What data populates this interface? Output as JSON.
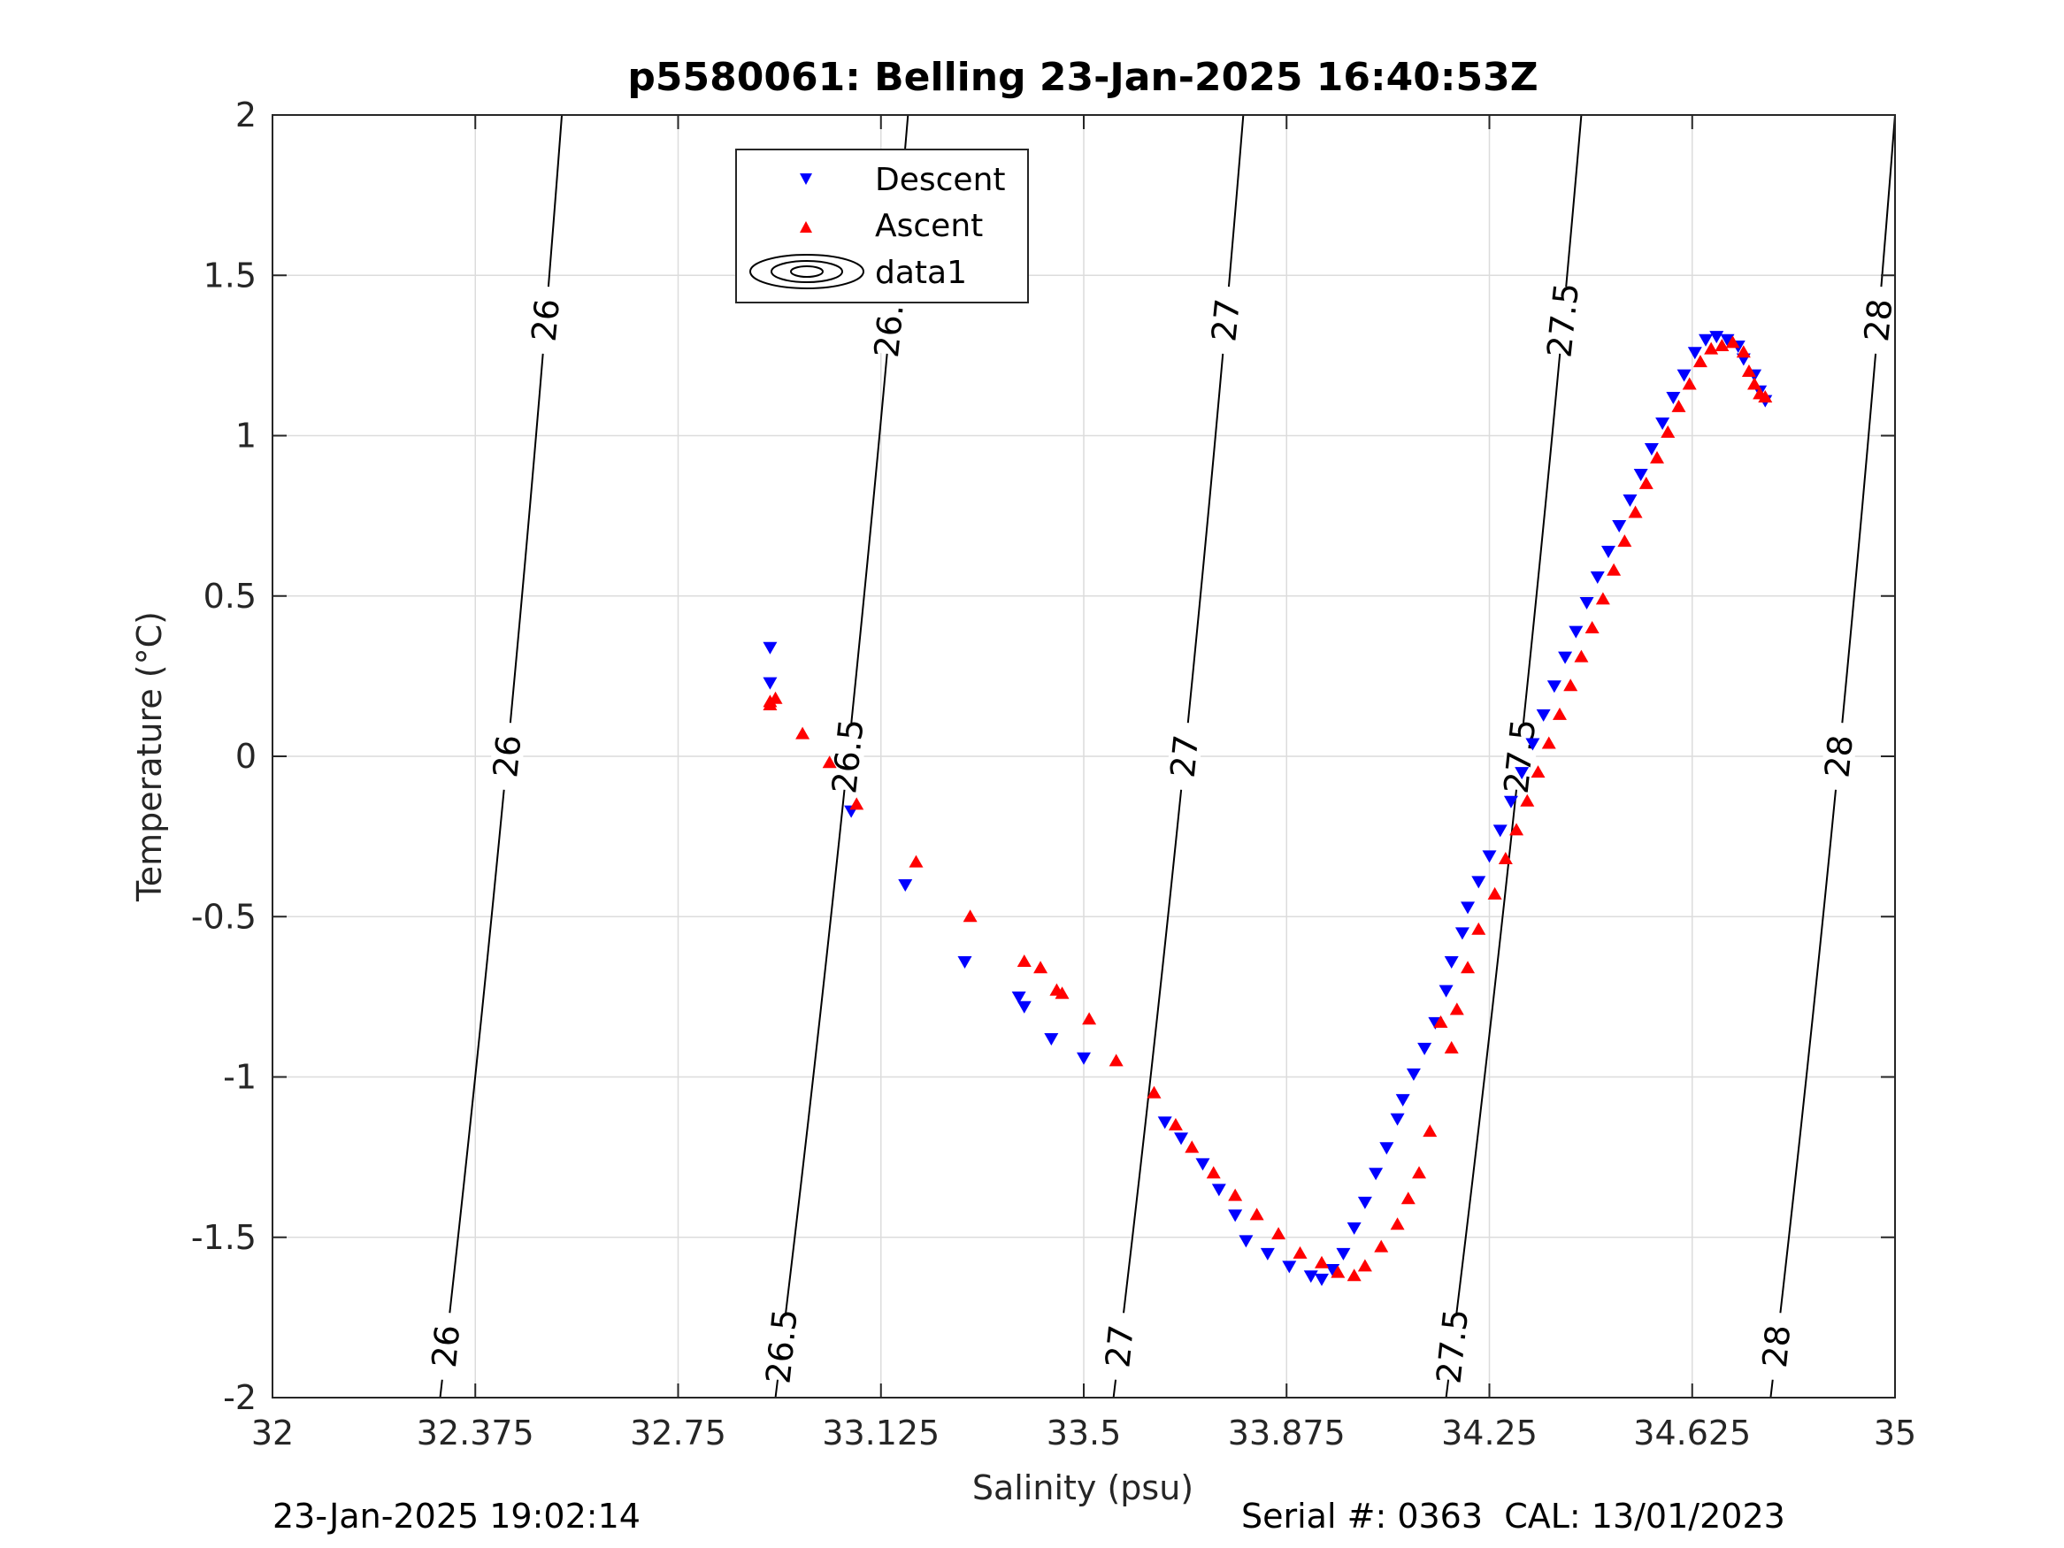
{
  "chart_data": {
    "type": "scatter",
    "title": "p5580061: Belling 23-Jan-2025 16:40:53Z",
    "xlabel": "Salinity (psu)",
    "ylabel": "Temperature (°C)",
    "xlim": [
      32,
      35
    ],
    "ylim": [
      -2,
      2
    ],
    "xticks": [
      32,
      32.375,
      32.75,
      33.125,
      33.5,
      33.875,
      34.25,
      34.625,
      35
    ],
    "xtick_labels": [
      "32",
      "32.375",
      "32.75",
      "33.125",
      "33.5",
      "33.875",
      "34.25",
      "34.625",
      "35"
    ],
    "yticks": [
      2,
      1.5,
      1,
      0.5,
      0,
      -0.5,
      -1,
      -1.5,
      -2
    ],
    "ytick_labels": [
      "2",
      "1.5",
      "1",
      "0.5",
      "0",
      "-0.5",
      "-1",
      "-1.5",
      "-2"
    ],
    "grid": true,
    "legend_position": "top-center",
    "series": [
      {
        "name": "Descent",
        "marker": "triangle-down",
        "color": "#0000ff",
        "x": [
          32.92,
          32.92,
          33.07,
          33.17,
          33.28,
          33.38,
          33.39,
          33.44,
          33.5,
          33.65,
          33.68,
          33.72,
          33.75,
          33.78,
          33.8,
          33.84,
          33.88,
          33.92,
          33.94,
          33.96,
          33.98,
          34.0,
          34.02,
          34.04,
          34.06,
          34.08,
          34.09,
          34.11,
          34.13,
          34.15,
          34.17,
          34.18,
          34.2,
          34.21,
          34.23,
          34.25,
          34.27,
          34.29,
          34.31,
          34.33,
          34.35,
          34.37,
          34.39,
          34.41,
          34.43,
          34.45,
          34.47,
          34.49,
          34.51,
          34.53,
          34.55,
          34.57,
          34.59,
          34.61,
          34.63,
          34.65,
          34.67,
          34.69,
          34.71,
          34.72,
          34.74,
          34.75,
          34.76
        ],
        "y": [
          0.34,
          0.23,
          -0.17,
          -0.4,
          -0.64,
          -0.75,
          -0.78,
          -0.88,
          -0.94,
          -1.14,
          -1.19,
          -1.27,
          -1.35,
          -1.43,
          -1.51,
          -1.55,
          -1.59,
          -1.62,
          -1.63,
          -1.6,
          -1.55,
          -1.47,
          -1.39,
          -1.3,
          -1.22,
          -1.13,
          -1.07,
          -0.99,
          -0.91,
          -0.83,
          -0.73,
          -0.64,
          -0.55,
          -0.47,
          -0.39,
          -0.31,
          -0.23,
          -0.14,
          -0.05,
          0.04,
          0.13,
          0.22,
          0.31,
          0.39,
          0.48,
          0.56,
          0.64,
          0.72,
          0.8,
          0.88,
          0.96,
          1.04,
          1.12,
          1.19,
          1.26,
          1.3,
          1.31,
          1.3,
          1.28,
          1.24,
          1.19,
          1.14,
          1.11
        ]
      },
      {
        "name": "Ascent",
        "marker": "triangle-up",
        "color": "#ff0000",
        "x": [
          32.92,
          32.93,
          32.92,
          32.98,
          33.03,
          33.08,
          33.19,
          33.29,
          33.39,
          33.42,
          33.45,
          33.46,
          33.51,
          33.56,
          33.63,
          33.67,
          33.7,
          33.74,
          33.78,
          33.82,
          33.86,
          33.9,
          33.94,
          33.97,
          34.0,
          34.02,
          34.05,
          34.08,
          34.1,
          34.12,
          34.14,
          34.16,
          34.18,
          34.19,
          34.21,
          34.23,
          34.26,
          34.28,
          34.3,
          34.32,
          34.34,
          34.36,
          34.38,
          34.4,
          34.42,
          34.44,
          34.46,
          34.48,
          34.5,
          34.52,
          34.54,
          34.56,
          34.58,
          34.6,
          34.62,
          34.64,
          34.66,
          34.68,
          34.7,
          34.72,
          34.73,
          34.74,
          34.75,
          34.76
        ],
        "y": [
          0.16,
          0.18,
          0.17,
          0.07,
          -0.02,
          -0.15,
          -0.33,
          -0.5,
          -0.64,
          -0.66,
          -0.73,
          -0.74,
          -0.82,
          -0.95,
          -1.05,
          -1.15,
          -1.22,
          -1.3,
          -1.37,
          -1.43,
          -1.49,
          -1.55,
          -1.58,
          -1.61,
          -1.62,
          -1.59,
          -1.53,
          -1.46,
          -1.38,
          -1.3,
          -1.17,
          -0.83,
          -0.91,
          -0.79,
          -0.66,
          -0.54,
          -0.43,
          -0.32,
          -0.23,
          -0.14,
          -0.05,
          0.04,
          0.13,
          0.22,
          0.31,
          0.4,
          0.49,
          0.58,
          0.67,
          0.76,
          0.85,
          0.93,
          1.01,
          1.09,
          1.16,
          1.23,
          1.27,
          1.28,
          1.29,
          1.26,
          1.2,
          1.16,
          1.13,
          1.12
        ]
      }
    ],
    "legend": {
      "entries": [
        "Descent",
        "Ascent",
        "data1"
      ]
    },
    "contours": {
      "description_free_label_values": [
        "26",
        "26.5",
        "27",
        "27.5",
        "28"
      ],
      "lines": [
        {
          "label": "26",
          "top_x": 32.535,
          "bottom_x": 32.31
        },
        {
          "label": "26.5",
          "top_x": 33.175,
          "bottom_x": 32.93
        },
        {
          "label": "27",
          "top_x": 33.795,
          "bottom_x": 33.555
        },
        {
          "label": "27.5",
          "top_x": 34.42,
          "bottom_x": 34.17
        },
        {
          "label": "28",
          "top_x": 35.0,
          "bottom_x": 34.77
        }
      ]
    },
    "footer": {
      "timestamp": "23-Jan-2025 19:02:14",
      "serial_cal": "Serial #: 0363  CAL: 13/01/2023"
    }
  }
}
